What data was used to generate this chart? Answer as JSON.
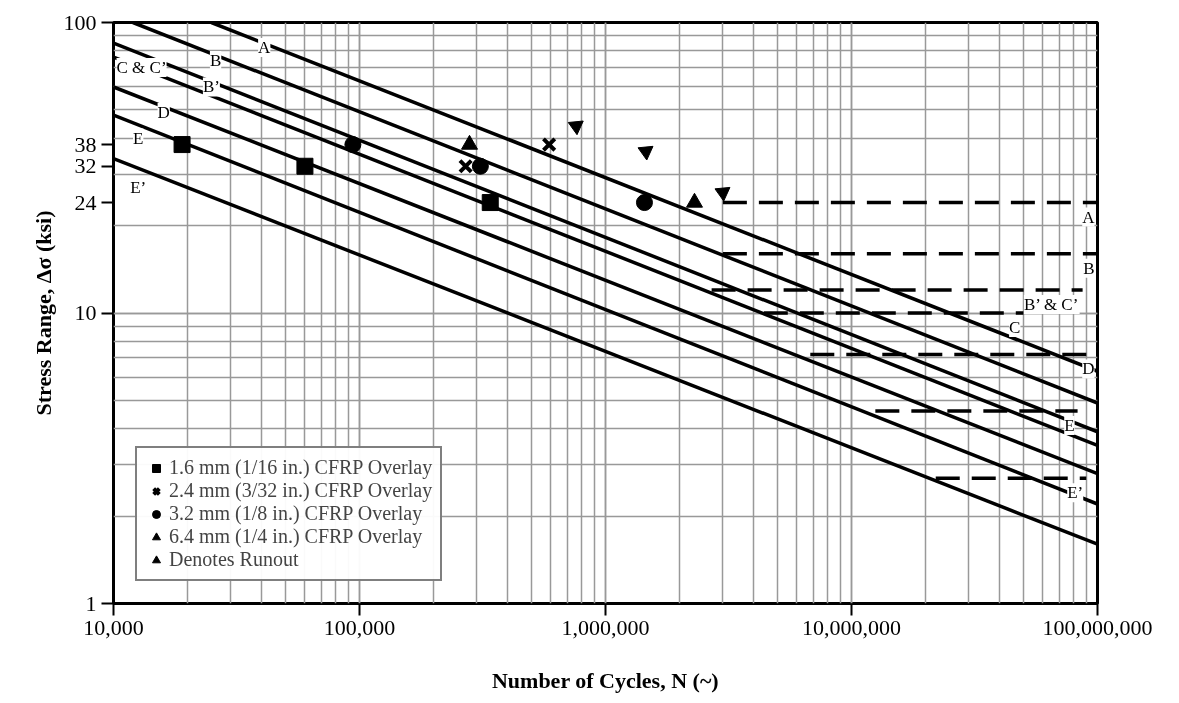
{
  "chart_data": {
    "type": "line",
    "xlabel": "Number of Cycles, N (~)",
    "ylabel": "Stress Range, Δσ (ksi)",
    "log": "xy",
    "xlim": [
      10000,
      100000000
    ],
    "ylim": [
      1,
      100
    ],
    "xticks": [
      {
        "value": 10000,
        "label": "10,000"
      },
      {
        "value": 100000,
        "label": "100,000"
      },
      {
        "value": 1000000,
        "label": "1,000,000"
      },
      {
        "value": 10000000,
        "label": "10,000,000"
      },
      {
        "value": 100000000,
        "label": "100,000,000"
      }
    ],
    "yticks": [
      1,
      10,
      100,
      24,
      32,
      38
    ],
    "grid": true,
    "legend": "bottom left",
    "series": [
      {
        "color": "#000000",
        "line_style": "solid",
        "x": [
          25000,
          100000000
        ],
        "values": [
          100,
          6.3
        ]
      },
      {
        "color": "#000000",
        "line_style": "solid",
        "x": [
          12000,
          100000000
        ],
        "values": [
          100,
          4.9
        ]
      },
      {
        "color": "#000000",
        "line_style": "solid",
        "x": [
          10000,
          100000000
        ],
        "values": [
          85,
          3.9
        ]
      },
      {
        "color": "#000000",
        "line_style": "solid",
        "x": [
          10000,
          100000000
        ],
        "values": [
          76,
          3.5
        ]
      },
      {
        "color": "#000000",
        "line_style": "solid",
        "x": [
          10000,
          100000000
        ],
        "values": [
          60,
          2.8
        ]
      },
      {
        "color": "#000000",
        "line_style": "solid",
        "x": [
          10000,
          100000000
        ],
        "values": [
          48,
          2.2
        ]
      },
      {
        "color": "#000000",
        "line_style": "solid",
        "x": [
          10000,
          100000000
        ],
        "values": [
          34,
          1.6
        ]
      },
      {
        "color": "#000000",
        "line_style": "dashed",
        "x": [
          3000000,
          100000000
        ],
        "values": [
          24,
          24
        ]
      },
      {
        "color": "#000000",
        "line_style": "dashed",
        "x": [
          3000000,
          100000000
        ],
        "values": [
          16,
          16
        ]
      },
      {
        "color": "#000000",
        "line_style": "dashed",
        "x": [
          2700000,
          87000000
        ],
        "values": [
          12,
          12
        ]
      },
      {
        "color": "#000000",
        "line_style": "dashed",
        "x": [
          4400000,
          50000000
        ],
        "values": [
          10,
          10
        ]
      },
      {
        "color": "#000000",
        "line_style": "dashed",
        "x": [
          6800000,
          100000000
        ],
        "values": [
          7.2,
          7.2
        ]
      },
      {
        "color": "#000000",
        "line_style": "dashed",
        "x": [
          12500000,
          83000000
        ],
        "values": [
          4.6,
          4.6
        ]
      },
      {
        "color": "#000000",
        "line_style": "dashed",
        "x": [
          22000000,
          90000000
        ],
        "values": [
          2.7,
          2.7
        ]
      },
      {
        "type": "scatter",
        "name": "1.6 mm (1/16 in.) CFRP Overlay",
        "marker": "square",
        "color": "#000000",
        "x": [
          19000,
          60000,
          340000
        ],
        "values": [
          38,
          32,
          24
        ]
      },
      {
        "type": "scatter",
        "name": "2.4 mm (3/32 in.) CFRP Overlay",
        "marker": "cross",
        "color": "#000000",
        "x": [
          270000,
          590000
        ],
        "values": [
          32,
          38
        ]
      },
      {
        "type": "scatter",
        "name": "3.2 mm (1/8 in.) CFRP Overlay",
        "marker": "circle",
        "color": "#000000",
        "x": [
          94000,
          310000,
          1440000
        ],
        "values": [
          38,
          32,
          24
        ]
      },
      {
        "type": "scatter",
        "name": "6.4 mm (1/4 in.) CFRP Overlay",
        "marker": "triangle",
        "color": "#000000",
        "x": [
          280000,
          2300000
        ],
        "values": [
          38,
          24
        ]
      },
      {
        "type": "scatter",
        "name": "Denotes Runout",
        "marker": "triangle",
        "line_style": "solid",
        "color": "#000000",
        "x": [
          760000,
          1460000,
          3000000
        ],
        "values": [
          44,
          36,
          26
        ]
      }
    ],
    "annotations": [
      {
        "text": "A",
        "x": 41000,
        "y": 82
      },
      {
        "text": "B",
        "x": 26000,
        "y": 74
      },
      {
        "text": "B’",
        "x": 25000,
        "y": 60
      },
      {
        "text": "C & C’",
        "x": 13000,
        "y": 70
      },
      {
        "text": "D",
        "x": 16000,
        "y": 49
      },
      {
        "text": "E",
        "x": 12600,
        "y": 40
      },
      {
        "text": "E’",
        "x": 12600,
        "y": 27
      },
      {
        "text": "A",
        "x": 100000000,
        "y": 24
      },
      {
        "text": "B",
        "x": 100000000,
        "y": 16
      },
      {
        "text": "B’ & C’",
        "x": 87000000,
        "y": 12
      },
      {
        "text": "C",
        "x": 50000000,
        "y": 10
      },
      {
        "text": "D",
        "x": 100000000,
        "y": 7.2
      },
      {
        "text": "E",
        "x": 83000000,
        "y": 4.6
      },
      {
        "text": "E’",
        "x": 90000000,
        "y": 2.7
      }
    ]
  }
}
